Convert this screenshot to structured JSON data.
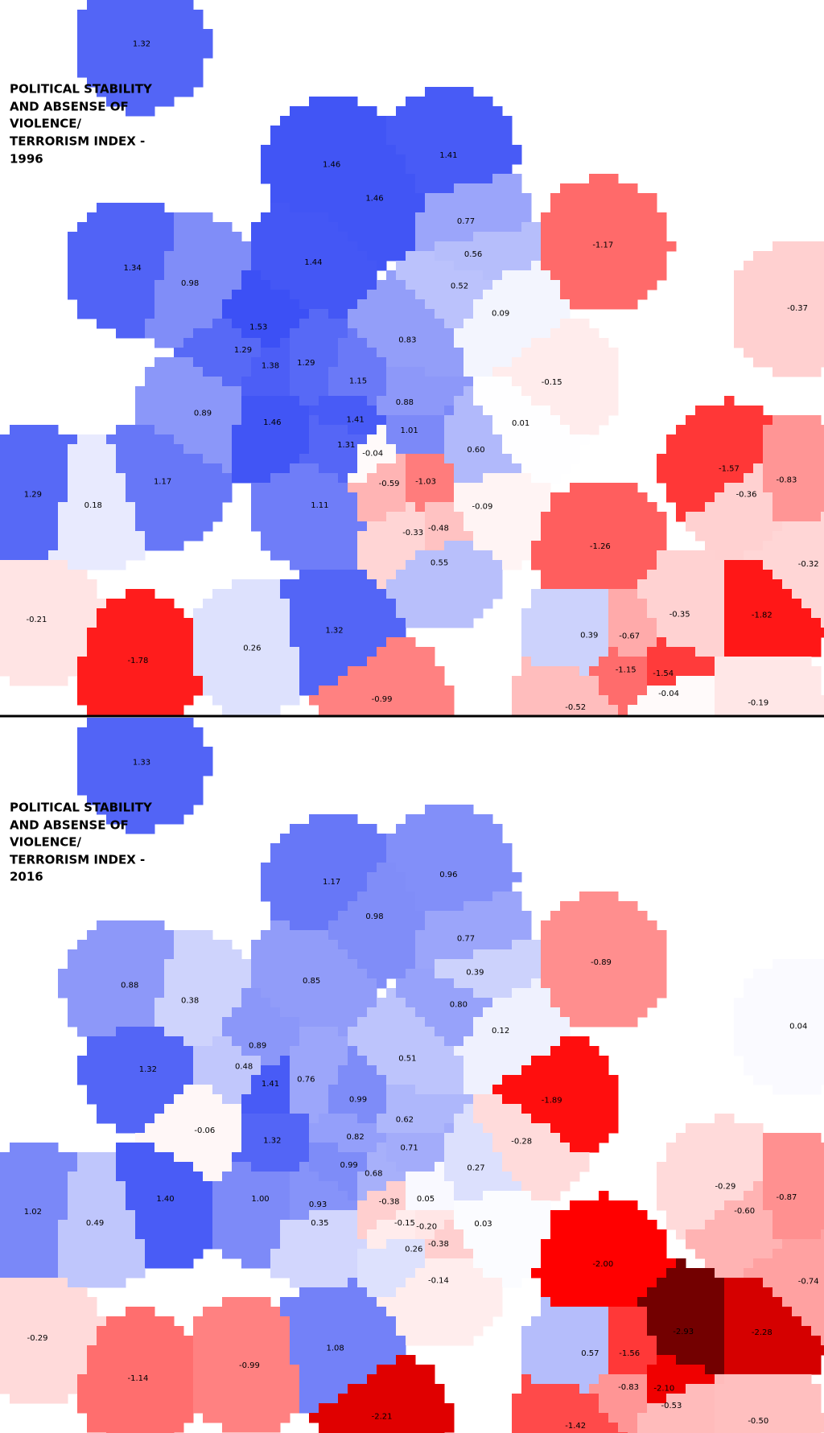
{
  "panels": [
    {
      "title_lines": [
        "POLITICAL STABILITY",
        "AND ABSENSE OF",
        "VIOLENCE/",
        "TERRORISM INDEX -",
        "1996"
      ],
      "labels": [
        "1.32",
        "1.46",
        "1.41",
        "1.46",
        "0.77",
        "-1.17",
        "1.34",
        "0.56",
        "1.44",
        "0.98",
        "0.52",
        "-0.37",
        "0.09",
        "1.53",
        "0.83",
        "1.29",
        "1.29",
        "1.38",
        "1.15",
        "-0.15",
        "0.88",
        "0.89",
        "1.41",
        "1.46",
        "1.01",
        "0.01",
        "1.31",
        "-0.04",
        "0.60",
        "-1.57",
        "-0.83",
        "1.29",
        "1.17",
        "-0.59",
        "-1.03",
        "-0.36",
        "0.18",
        "1.11",
        "-0.09",
        "-0.48",
        "-0.33",
        "-1.26",
        "-0.32",
        "0.55",
        "-0.21",
        "-0.35",
        "-1.82",
        "1.32",
        "0.39",
        "-0.67",
        "0.26",
        "-1.78",
        "-1.15",
        "-1.54",
        "-0.04",
        "-0.99",
        "-0.19",
        "-0.52"
      ]
    },
    {
      "title_lines": [
        "POLITICAL STABILITY",
        "AND ABSENSE OF",
        "VIOLENCE/",
        "TERRORISM INDEX -",
        "2016"
      ],
      "labels": [
        "1.33",
        "1.17",
        "0.96",
        "0.98",
        "0.77",
        "-0.89",
        "0.39",
        "0.88",
        "0.85",
        "0.38",
        "0.80",
        "0.04",
        "0.12",
        "0.51",
        "1.32",
        "0.48",
        "0.76",
        "1.41",
        "0.89",
        "-1.89",
        "0.99",
        "0.62",
        "-0.06",
        "0.82",
        "1.32",
        "0.71",
        "-0.28",
        "0.27",
        "0.99",
        "0.68",
        "-0.29",
        "-0.87",
        "1.40",
        "1.00",
        "0.93",
        "-0.38",
        "0.05",
        "1.02",
        "-0.60",
        "0.49",
        "0.35",
        "-0.15",
        "-0.20",
        "0.03",
        "-0.38",
        "0.26",
        "-2.00",
        "-0.14",
        "-0.74",
        "-2.93",
        "-2.28",
        "-0.29",
        "1.08",
        "0.57",
        "-1.56",
        "-0.99",
        "-1.14",
        "-2.10",
        "-0.83",
        "-0.53",
        "-2.21",
        "-1.42",
        "-0.50"
      ]
    }
  ]
}
